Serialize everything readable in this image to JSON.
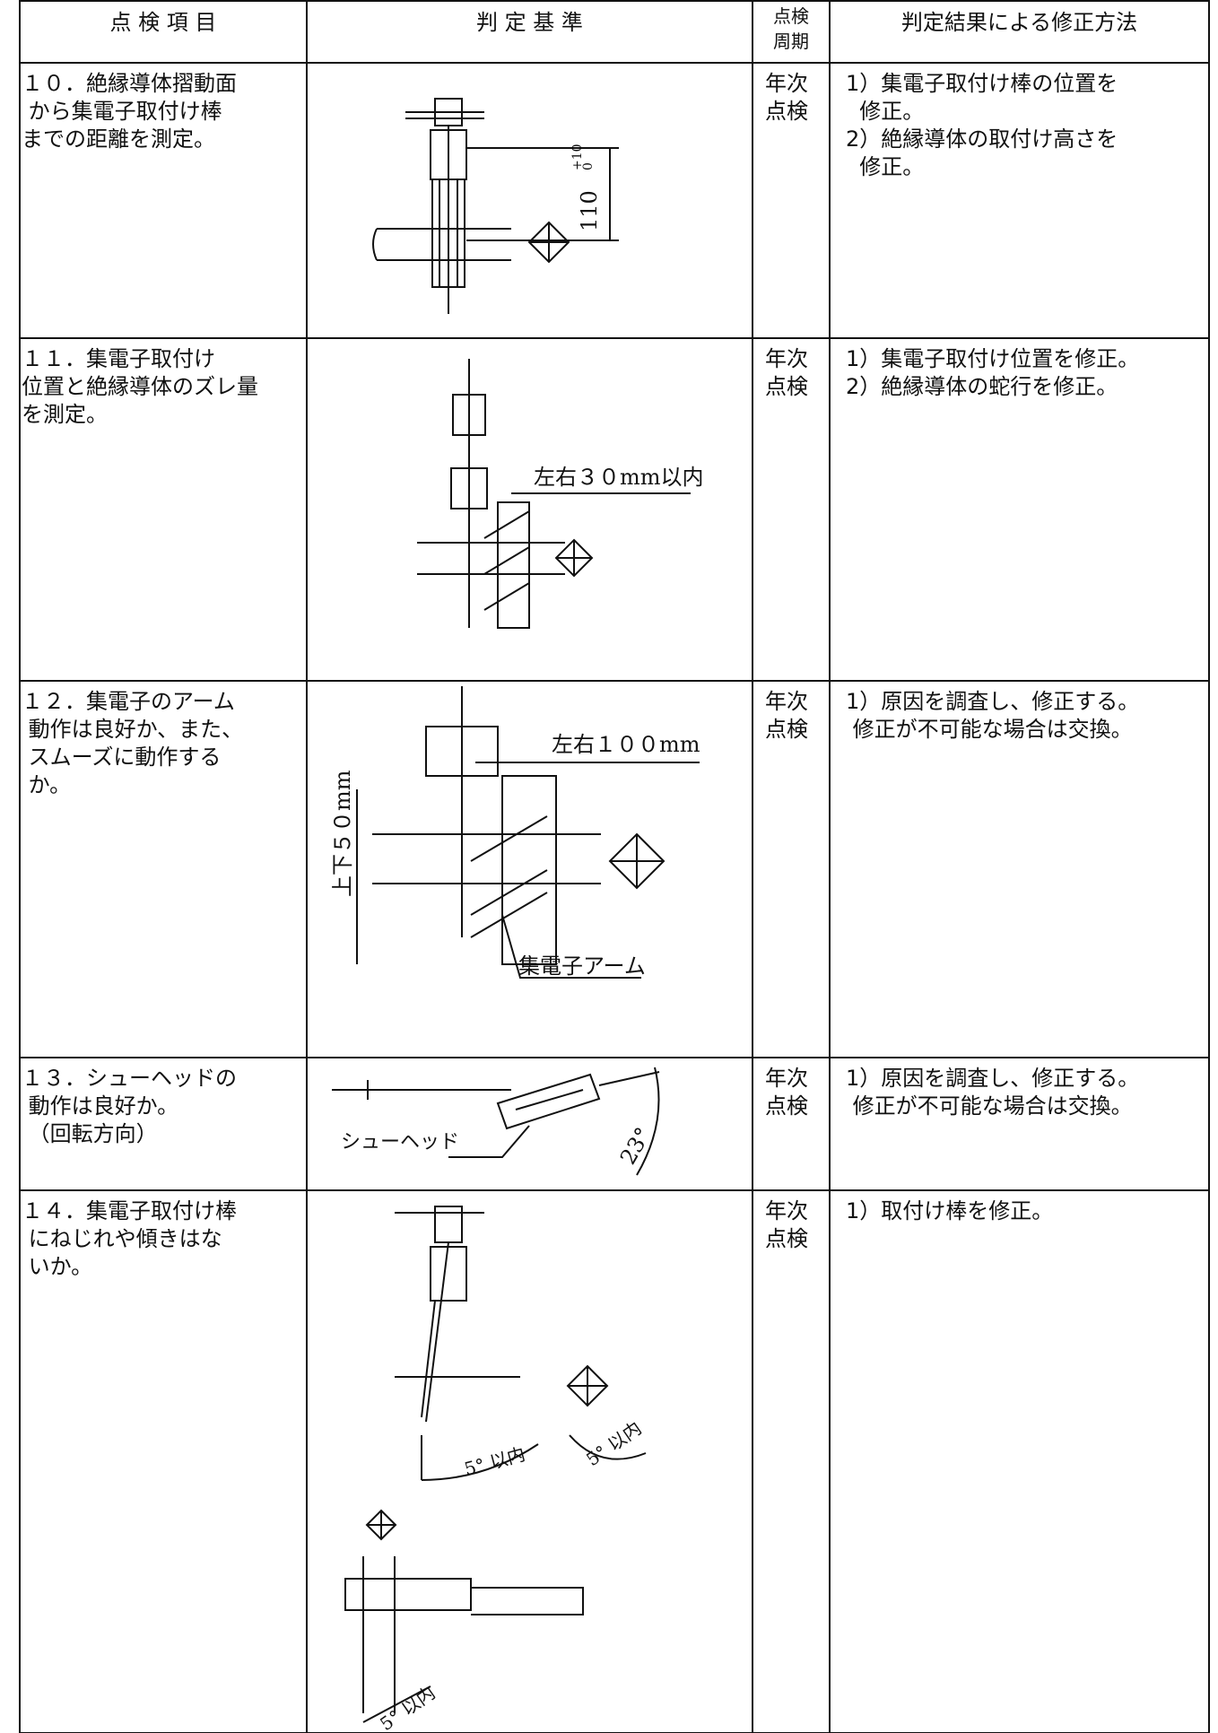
{
  "header": [
    "点 検 項 目",
    "判 定 基 準",
    [
      "点検",
      "周期"
    ],
    "判定結果による修正方法"
  ],
  "rows": [
    {
      "item": [
        "１０．絶縁導体摺動面",
        " から集電子取付け棒",
        "までの距離を測定。"
      ],
      "cycle": [
        "年次",
        "点検"
      ],
      "remedy": [
        "1）集電子取付け棒の位置を",
        "  修正。",
        "2）絶縁導体の取付け高さを",
        "  修正。"
      ],
      "figure": {
        "labels": [
          "110",
          "+10",
          "0"
        ]
      }
    },
    {
      "item": [
        "１１．集電子取付け",
        "位置と絶縁導体のズレ量",
        "を測定。"
      ],
      "cycle": [
        "年次",
        "点検"
      ],
      "remedy": [
        "1）集電子取付け位置を修正。",
        "2）絶縁導体の蛇行を修正。"
      ],
      "figure": {
        "labels": [
          "左右３０mm以内"
        ]
      }
    },
    {
      "item": [
        "１２．集電子のアーム",
        " 動作は良好か、また、",
        " スムーズに動作する",
        " か。"
      ],
      "cycle": [
        "年次",
        "点検"
      ],
      "remedy": [
        "1）原因を調査し、修正する。",
        " 修正が不可能な場合は交換。"
      ],
      "figure": {
        "labels": [
          "左右１００mm",
          "上下５０mm",
          "集電子アーム"
        ]
      }
    },
    {
      "item": [
        "１３．シューヘッドの",
        " 動作は良好か。",
        " （回転方向）"
      ],
      "cycle": [
        "年次",
        "点検"
      ],
      "remedy": [
        "1）原因を調査し、修正する。",
        " 修正が不可能な場合は交換。"
      ],
      "figure": {
        "labels": [
          "シューヘッド",
          "23°"
        ]
      }
    },
    {
      "item": [
        "１４．集電子取付け棒",
        " にねじれや傾きはな",
        " いか。"
      ],
      "cycle": [
        "年次",
        "点検"
      ],
      "remedy": [
        "1）取付け棒を修正。"
      ],
      "figure": {
        "labels": [
          "5° 以内",
          "5° 以内",
          "5° 以内"
        ]
      }
    }
  ]
}
